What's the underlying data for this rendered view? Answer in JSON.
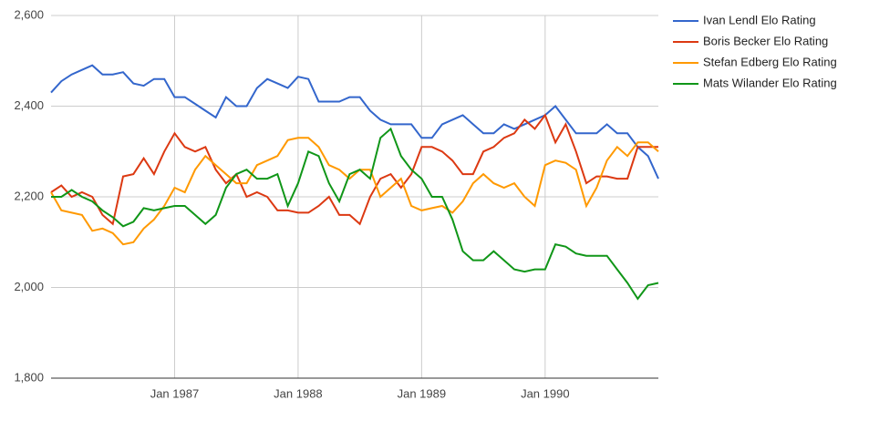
{
  "chart_data": {
    "type": "line",
    "x": [
      "Jan 1986",
      "Feb 1986",
      "Mar 1986",
      "Apr 1986",
      "May 1986",
      "Jun 1986",
      "Jul 1986",
      "Aug 1986",
      "Sep 1986",
      "Oct 1986",
      "Nov 1986",
      "Dec 1986",
      "Jan 1987",
      "Feb 1987",
      "Mar 1987",
      "Apr 1987",
      "May 1987",
      "Jun 1987",
      "Jul 1987",
      "Aug 1987",
      "Sep 1987",
      "Oct 1987",
      "Nov 1987",
      "Dec 1987",
      "Jan 1988",
      "Feb 1988",
      "Mar 1988",
      "Apr 1988",
      "May 1988",
      "Jun 1988",
      "Jul 1988",
      "Aug 1988",
      "Sep 1988",
      "Oct 1988",
      "Nov 1988",
      "Dec 1988",
      "Jan 1989",
      "Feb 1989",
      "Mar 1989",
      "Apr 1989",
      "May 1989",
      "Jun 1989",
      "Jul 1989",
      "Aug 1989",
      "Sep 1989",
      "Oct 1989",
      "Nov 1989",
      "Dec 1989",
      "Jan 1990",
      "Feb 1990",
      "Mar 1990",
      "Apr 1990",
      "May 1990",
      "Jun 1990",
      "Jul 1990",
      "Aug 1990",
      "Sep 1990",
      "Oct 1990",
      "Nov 1990",
      "Dec 1990"
    ],
    "series": [
      {
        "name": "Ivan Lendl Elo Rating",
        "color": "#3366cc",
        "values": [
          2430,
          2455,
          2470,
          2480,
          2490,
          2470,
          2470,
          2475,
          2450,
          2445,
          2460,
          2460,
          2420,
          2420,
          2405,
          2390,
          2375,
          2420,
          2400,
          2400,
          2440,
          2460,
          2450,
          2440,
          2465,
          2460,
          2410,
          2410,
          2410,
          2420,
          2420,
          2390,
          2370,
          2360,
          2360,
          2360,
          2330,
          2330,
          2360,
          2370,
          2380,
          2360,
          2340,
          2340,
          2360,
          2350,
          2360,
          2370,
          2380,
          2400,
          2370,
          2340,
          2340,
          2340,
          2360,
          2340,
          2340,
          2310,
          2290,
          2240
        ]
      },
      {
        "name": "Boris Becker Elo Rating",
        "color": "#dc3912",
        "values": [
          2210,
          2225,
          2200,
          2210,
          2200,
          2160,
          2140,
          2245,
          2250,
          2285,
          2250,
          2300,
          2340,
          2310,
          2300,
          2310,
          2260,
          2230,
          2250,
          2200,
          2210,
          2200,
          2170,
          2170,
          2165,
          2165,
          2180,
          2200,
          2160,
          2160,
          2140,
          2200,
          2240,
          2250,
          2220,
          2250,
          2310,
          2310,
          2300,
          2280,
          2250,
          2250,
          2300,
          2310,
          2330,
          2340,
          2370,
          2350,
          2380,
          2320,
          2360,
          2300,
          2230,
          2245,
          2245,
          2240,
          2240,
          2310,
          2310,
          2310
        ]
      },
      {
        "name": "Stefan Edberg Elo Rating",
        "color": "#ff9900",
        "values": [
          2210,
          2170,
          2165,
          2160,
          2125,
          2130,
          2120,
          2095,
          2100,
          2130,
          2150,
          2180,
          2220,
          2210,
          2260,
          2290,
          2270,
          2250,
          2230,
          2230,
          2270,
          2280,
          2290,
          2325,
          2330,
          2330,
          2310,
          2270,
          2260,
          2240,
          2260,
          2260,
          2200,
          2220,
          2240,
          2180,
          2170,
          2175,
          2180,
          2165,
          2190,
          2230,
          2250,
          2230,
          2220,
          2230,
          2200,
          2180,
          2270,
          2280,
          2275,
          2260,
          2180,
          2220,
          2280,
          2310,
          2290,
          2320,
          2320,
          2300
        ]
      },
      {
        "name": "Mats Wilander Elo Rating",
        "color": "#109618",
        "values": [
          2200,
          2200,
          2215,
          2200,
          2190,
          2170,
          2155,
          2135,
          2145,
          2175,
          2170,
          2175,
          2180,
          2180,
          2160,
          2140,
          2160,
          2220,
          2250,
          2260,
          2240,
          2240,
          2250,
          2180,
          2230,
          2300,
          2290,
          2230,
          2190,
          2250,
          2260,
          2240,
          2330,
          2350,
          2290,
          2260,
          2240,
          2200,
          2200,
          2150,
          2080,
          2060,
          2060,
          2080,
          2060,
          2040,
          2035,
          2040,
          2040,
          2095,
          2090,
          2075,
          2070,
          2070,
          2070,
          2040,
          2010,
          1975,
          2005,
          2010
        ]
      }
    ],
    "xlim": [
      "Jan 1986",
      "Dec 1990"
    ],
    "xticks": [
      "Jan 1987",
      "Jan 1988",
      "Jan 1989",
      "Jan 1990"
    ],
    "ylim": [
      1800,
      2600
    ],
    "yticks": [
      {
        "value": 1800,
        "label": "1,800"
      },
      {
        "value": 2000,
        "label": "2,000"
      },
      {
        "value": 2200,
        "label": "2,200"
      },
      {
        "value": 2400,
        "label": "2,400"
      },
      {
        "value": 2600,
        "label": "2,600"
      }
    ],
    "grid": true,
    "legend": "right"
  }
}
